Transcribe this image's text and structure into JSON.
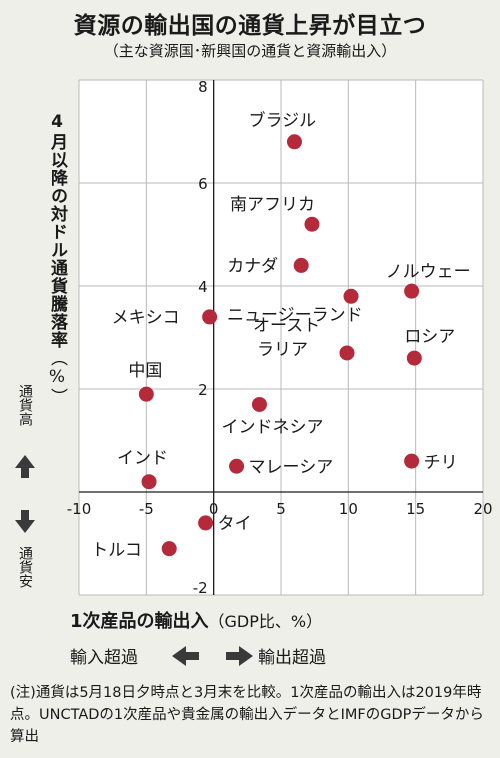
{
  "title": "資源の輸出国の通貨上昇が目立つ",
  "subtitle": "（主な資源国･新興国の通貨と資源輸出入）",
  "axis_side_labels": {
    "up": "通貨高",
    "down": "通貨安",
    "left": "輸入超過",
    "right": "輸出超過"
  },
  "note": "(注)通貨は5月18日夕時点と3月末を比較。1次産品の輸出入は2019年時点。UNCTADの1次産品や貴金属の輸出入データとIMFのGDPデータから算出",
  "colors": {
    "point": "#b52a3a",
    "background": "#efefe9",
    "grid": "#b8b8b8"
  },
  "chart_data": {
    "type": "scatter",
    "xlabel_main": "1次産品の輸出入",
    "xlabel_unit": "（GDP比、%）",
    "ylabel_main": "4月以降の対ドル通貨騰落率",
    "ylabel_unit": "（%）",
    "xlim": [
      -10,
      20
    ],
    "ylim": [
      -2,
      8
    ],
    "x_ticks": [
      -10,
      -5,
      0,
      5,
      10,
      15,
      20
    ],
    "y_ticks": [
      -2,
      2,
      4,
      6,
      8
    ],
    "grid": true,
    "points": [
      {
        "label": "ブラジル",
        "x": 6.0,
        "y": 6.8
      },
      {
        "label": "南アフリカ",
        "x": 7.3,
        "y": 5.2
      },
      {
        "label": "カナダ",
        "x": 6.5,
        "y": 4.4
      },
      {
        "label": "ノルウェー",
        "x": 14.7,
        "y": 3.9
      },
      {
        "label": "ニュージーランド",
        "x": 10.2,
        "y": 3.8
      },
      {
        "label": "メキシコ",
        "x": -0.3,
        "y": 3.4
      },
      {
        "label": "オーストラリア",
        "x": 9.9,
        "y": 2.7
      },
      {
        "label": "ロシア",
        "x": 14.9,
        "y": 2.6
      },
      {
        "label": "中国",
        "x": -5.0,
        "y": 1.9
      },
      {
        "label": "インドネシア",
        "x": 3.4,
        "y": 1.7
      },
      {
        "label": "チリ",
        "x": 14.7,
        "y": 0.6
      },
      {
        "label": "マレーシア",
        "x": 1.7,
        "y": 0.5
      },
      {
        "label": "インド",
        "x": -4.8,
        "y": 0.2
      },
      {
        "label": "タイ",
        "x": -0.6,
        "y": -0.6
      },
      {
        "label": "トルコ",
        "x": -3.3,
        "y": -1.1
      }
    ]
  }
}
